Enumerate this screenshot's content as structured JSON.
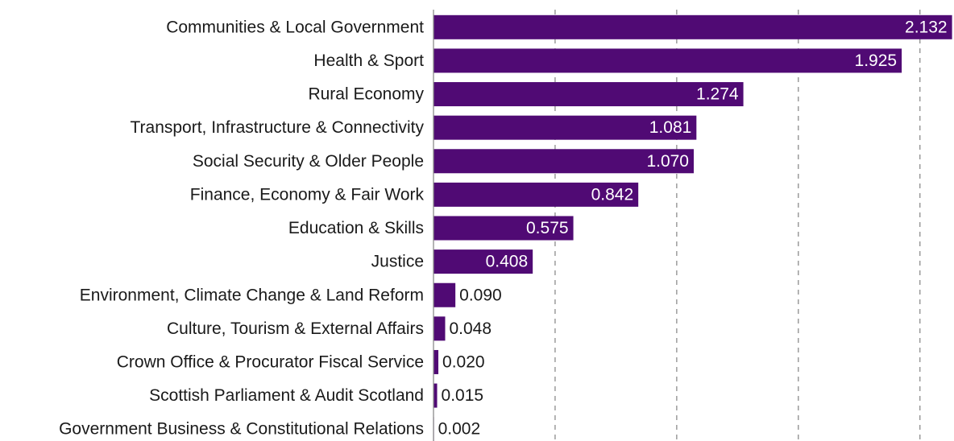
{
  "chart_data": {
    "type": "bar",
    "orientation": "horizontal",
    "categories": [
      "Communities & Local Government",
      "Health & Sport",
      "Rural Economy",
      "Transport, Infrastructure & Connectivity",
      "Social Security & Older People",
      "Finance, Economy & Fair Work",
      "Education & Skills",
      "Justice",
      "Environment, Climate Change & Land Reform",
      "Culture, Tourism & External Affairs",
      "Crown Office & Procurator Fiscal Service",
      "Scottish Parliament & Audit Scotland",
      "Government Business & Constitutional Relations"
    ],
    "values": [
      2.132,
      1.925,
      1.274,
      1.081,
      1.07,
      0.842,
      0.575,
      0.408,
      0.09,
      0.048,
      0.02,
      0.015,
      0.002
    ],
    "value_labels": [
      "2.132",
      "1.925",
      "1.274",
      "1.081",
      "1.070",
      "0.842",
      "0.575",
      "0.408",
      "0.090",
      "0.048",
      "0.020",
      "0.015",
      "0.002"
    ],
    "color": "#500a74",
    "xlim": [
      0,
      2.14
    ],
    "xticks": [
      0.5,
      1,
      1.5,
      2
    ],
    "grid": true
  }
}
